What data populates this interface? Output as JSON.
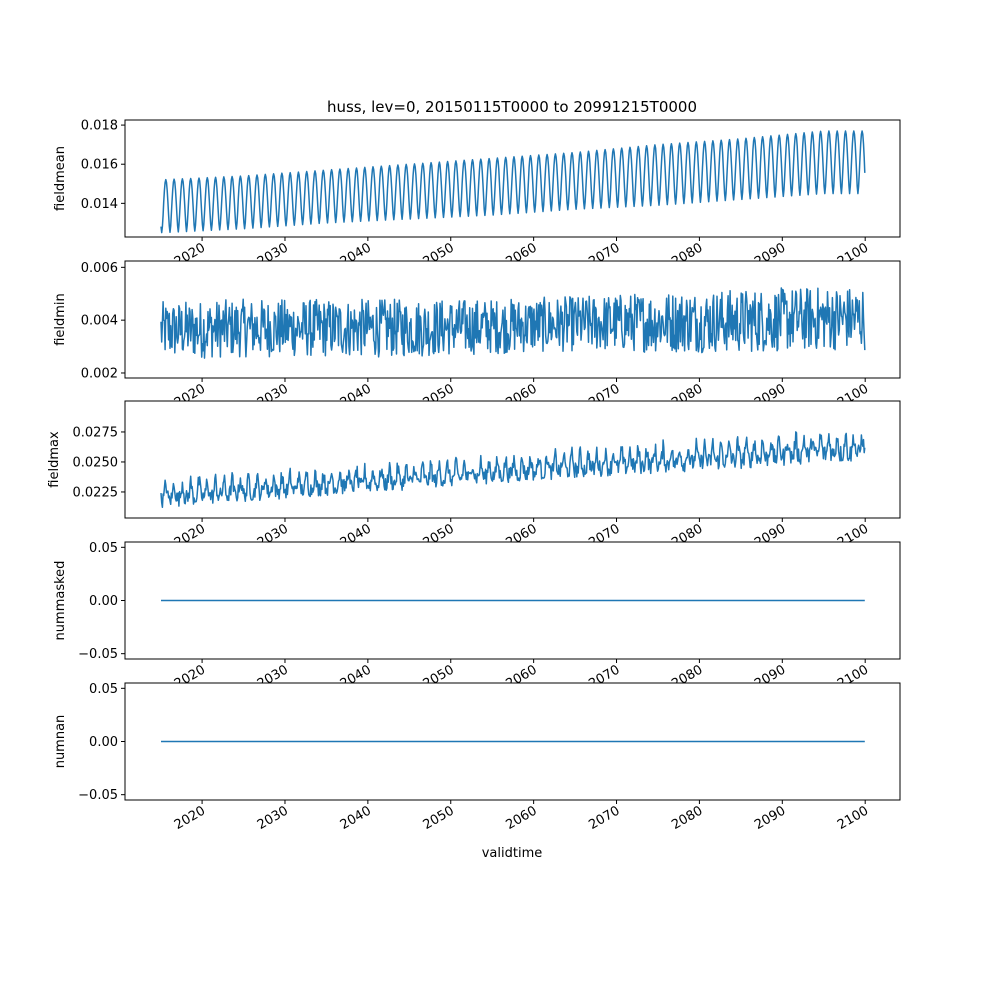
{
  "chart_data": {
    "type": "line",
    "title": "huss, lev=0, 20150115T0000 to 20991215T0000",
    "xlabel": "validtime",
    "x_range": [
      "2015-01-15",
      "2099-12-15"
    ],
    "x_frequency": "monthly",
    "xlim": [
      2010.7,
      2104.2
    ],
    "x_ticks": [
      "2020",
      "2030",
      "2040",
      "2050",
      "2060",
      "2070",
      "2080",
      "2090",
      "2100"
    ],
    "line_color": "#1f77b4",
    "series_note": "envelopes approximated at decadal anchor years",
    "anchor_years": [
      2015,
      2025,
      2035,
      2045,
      2055,
      2065,
      2075,
      2085,
      2095
    ],
    "panels": [
      {
        "name": "fieldmean",
        "ylabel": "fieldmean",
        "ylim": [
          0.01228,
          0.01826
        ],
        "y_ticks": [
          "0.014",
          "0.016",
          "0.018"
        ],
        "y_tick_values": [
          0.014,
          0.016,
          0.018
        ],
        "kind": "seasonal",
        "low": [
          0.0125,
          0.0127,
          0.013,
          0.0132,
          0.0134,
          0.0137,
          0.0139,
          0.0142,
          0.0145
        ],
        "high": [
          0.0152,
          0.0154,
          0.0157,
          0.016,
          0.0163,
          0.0166,
          0.017,
          0.0173,
          0.0177
        ]
      },
      {
        "name": "fieldmin",
        "ylabel": "fieldmin",
        "ylim": [
          0.00181,
          0.00624
        ],
        "y_ticks": [
          "0.002",
          "0.004",
          "0.006"
        ],
        "y_tick_values": [
          0.002,
          0.004,
          0.006
        ],
        "kind": "noisy",
        "low": [
          0.0029,
          0.003,
          0.003,
          0.003,
          0.0031,
          0.0032,
          0.0032,
          0.0032,
          0.0033
        ],
        "high": [
          0.0049,
          0.005,
          0.005,
          0.005,
          0.005,
          0.0051,
          0.0053,
          0.0054,
          0.0055
        ]
      },
      {
        "name": "fieldmax",
        "ylabel": "fieldmax",
        "ylim": [
          0.02033,
          0.03008
        ],
        "y_ticks": [
          "0.0225",
          "0.0250",
          "0.0275"
        ],
        "y_tick_values": [
          0.0225,
          0.025,
          0.0275
        ],
        "kind": "noisy",
        "low": [
          0.0215,
          0.022,
          0.0225,
          0.023,
          0.0235,
          0.024,
          0.0244,
          0.0248,
          0.0253
        ],
        "high": [
          0.0237,
          0.0242,
          0.0246,
          0.0251,
          0.0256,
          0.0262,
          0.0267,
          0.0272,
          0.0278
        ]
      },
      {
        "name": "nummasked",
        "ylabel": "nummasked",
        "ylim": [
          -0.055,
          0.055
        ],
        "y_ticks": [
          "−0.05",
          "0.00",
          "0.05"
        ],
        "y_tick_values": [
          -0.05,
          0,
          0.05
        ],
        "kind": "constant",
        "value": 0
      },
      {
        "name": "numnan",
        "ylabel": "numnan",
        "ylim": [
          -0.055,
          0.055
        ],
        "y_ticks": [
          "−0.05",
          "0.00",
          "0.05"
        ],
        "y_tick_values": [
          -0.05,
          0,
          0.05
        ],
        "kind": "constant",
        "value": 0
      }
    ]
  }
}
